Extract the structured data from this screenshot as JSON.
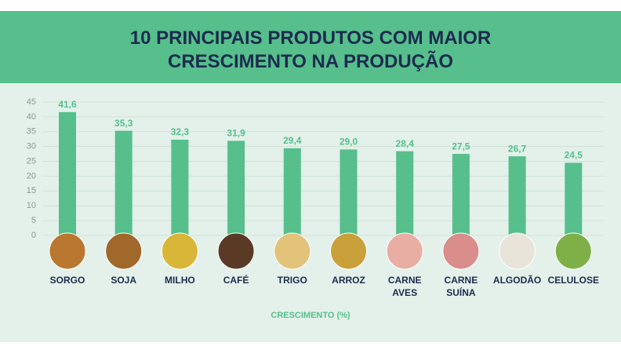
{
  "chart_data": {
    "type": "bar",
    "title": "10 PRINCIPAIS PRODUTOS COM MAIOR CRESCIMENTO NA PRODUÇÃO",
    "x_label": "CRESCIMENTO (%)",
    "categories": [
      "SORGO",
      "SOJA",
      "MILHO",
      "CAFÉ",
      "TRIGO",
      "ARROZ",
      "CARNE AVES",
      "CARNE SUÍNA",
      "ALGODÃO",
      "CELULOSE"
    ],
    "values": [
      41.6,
      35.3,
      32.3,
      31.9,
      29.4,
      29.0,
      28.4,
      27.5,
      26.7,
      24.5
    ],
    "value_labels": [
      "41,6",
      "35,3",
      "32,3",
      "31,9",
      "29,4",
      "29,0",
      "28,4",
      "27,5",
      "26,7",
      "24,5"
    ],
    "color": "#56bf8c",
    "ylim": [
      0,
      45
    ],
    "yticks": [
      0,
      5,
      10,
      15,
      20,
      25,
      30,
      35,
      40,
      45
    ],
    "grid": true
  }
}
